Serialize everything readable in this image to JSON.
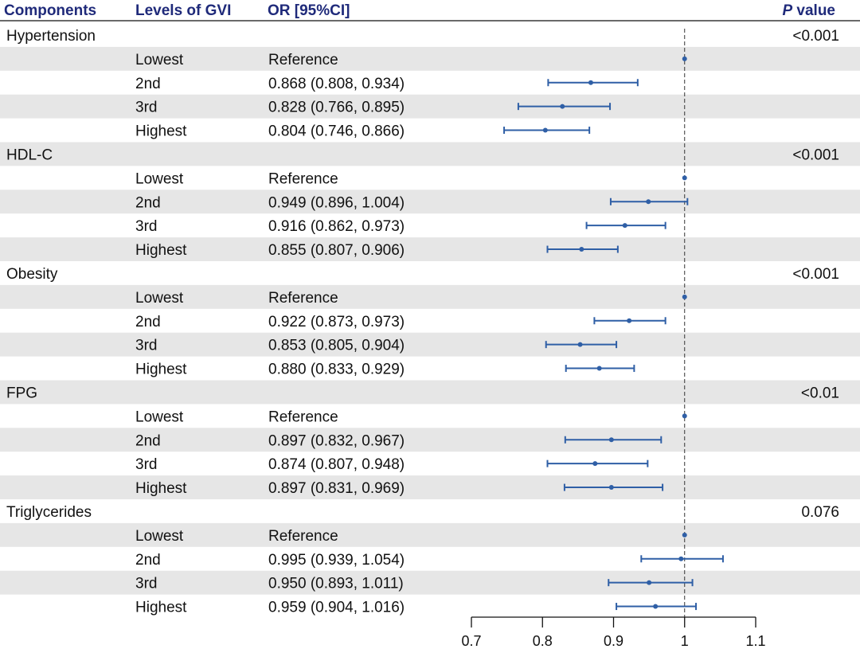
{
  "headers": {
    "components": "Components",
    "levels": "Levels of GVI",
    "or_ci": "OR [95%CI]",
    "p_value_p": "P",
    "p_value_rest": " value"
  },
  "colors": {
    "header": "#1f2a7a",
    "marker": "#2f5fa6",
    "band": "#e6e6e6",
    "text": "#111111"
  },
  "chart_data": {
    "type": "forest",
    "reference_line": 1,
    "xlim": [
      0.7,
      1.1
    ],
    "x_ticks": [
      0.7,
      0.8,
      0.9,
      1,
      1.1
    ],
    "x_tick_labels": [
      "0.7",
      "0.8",
      "0.9",
      "1",
      "1.1"
    ],
    "groups": [
      {
        "name": "Hypertension",
        "p": "<0.001",
        "rows": [
          {
            "level": "Lowest",
            "label": "Reference",
            "or": 1.0,
            "lo": 1.0,
            "hi": 1.0
          },
          {
            "level": "2nd",
            "label": "0.868 (0.808, 0.934)",
            "or": 0.868,
            "lo": 0.808,
            "hi": 0.934
          },
          {
            "level": "3rd",
            "label": "0.828 (0.766, 0.895)",
            "or": 0.828,
            "lo": 0.766,
            "hi": 0.895
          },
          {
            "level": "Highest",
            "label": "0.804 (0.746, 0.866)",
            "or": 0.804,
            "lo": 0.746,
            "hi": 0.866
          }
        ]
      },
      {
        "name": "HDL-C",
        "p": "<0.001",
        "rows": [
          {
            "level": "Lowest",
            "label": "Reference",
            "or": 1.0,
            "lo": 1.0,
            "hi": 1.0
          },
          {
            "level": "2nd",
            "label": "0.949 (0.896, 1.004)",
            "or": 0.949,
            "lo": 0.896,
            "hi": 1.004
          },
          {
            "level": "3rd",
            "label": "0.916 (0.862, 0.973)",
            "or": 0.916,
            "lo": 0.862,
            "hi": 0.973
          },
          {
            "level": "Highest",
            "label": "0.855 (0.807, 0.906)",
            "or": 0.855,
            "lo": 0.807,
            "hi": 0.906
          }
        ]
      },
      {
        "name": "Obesity",
        "p": "<0.001",
        "rows": [
          {
            "level": "Lowest",
            "label": "Reference",
            "or": 1.0,
            "lo": 1.0,
            "hi": 1.0
          },
          {
            "level": "2nd",
            "label": "0.922 (0.873, 0.973)",
            "or": 0.922,
            "lo": 0.873,
            "hi": 0.973
          },
          {
            "level": "3rd",
            "label": "0.853 (0.805, 0.904)",
            "or": 0.853,
            "lo": 0.805,
            "hi": 0.904
          },
          {
            "level": "Highest",
            "label": "0.880 (0.833, 0.929)",
            "or": 0.88,
            "lo": 0.833,
            "hi": 0.929
          }
        ]
      },
      {
        "name": "FPG",
        "p": "<0.01",
        "rows": [
          {
            "level": "Lowest",
            "label": "Reference",
            "or": 1.0,
            "lo": 1.0,
            "hi": 1.0
          },
          {
            "level": "2nd",
            "label": "0.897 (0.832, 0.967)",
            "or": 0.897,
            "lo": 0.832,
            "hi": 0.967
          },
          {
            "level": "3rd",
            "label": "0.874 (0.807, 0.948)",
            "or": 0.874,
            "lo": 0.807,
            "hi": 0.948
          },
          {
            "level": "Highest",
            "label": "0.897 (0.831, 0.969)",
            "or": 0.897,
            "lo": 0.831,
            "hi": 0.969
          }
        ]
      },
      {
        "name": "Triglycerides",
        "p": "0.076",
        "rows": [
          {
            "level": "Lowest",
            "label": "Reference",
            "or": 1.0,
            "lo": 1.0,
            "hi": 1.0
          },
          {
            "level": "2nd",
            "label": "0.995 (0.939, 1.054)",
            "or": 0.995,
            "lo": 0.939,
            "hi": 1.054
          },
          {
            "level": "3rd",
            "label": "0.950 (0.893, 1.011)",
            "or": 0.95,
            "lo": 0.893,
            "hi": 1.011
          },
          {
            "level": "Highest",
            "label": "0.959 (0.904, 1.016)",
            "or": 0.959,
            "lo": 0.904,
            "hi": 1.016
          }
        ]
      }
    ]
  }
}
